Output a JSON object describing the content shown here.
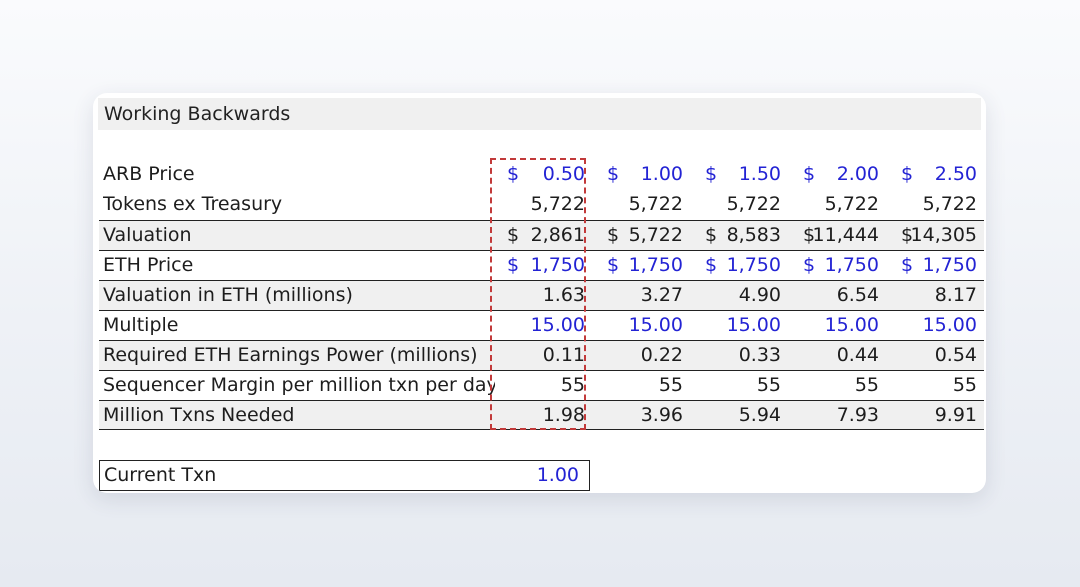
{
  "sheet": {
    "title": "Working Backwards",
    "rows": [
      {
        "label": "ARB Price",
        "values": [
          "$|0.50",
          "$|1.00",
          "$|1.50",
          "$|2.00",
          "$|2.50"
        ],
        "style": "blue",
        "shaded": false
      },
      {
        "label": "Tokens ex Treasury",
        "values": [
          "|5,722",
          "|5,722",
          "|5,722",
          "|5,722",
          "|5,722"
        ],
        "style": "black",
        "shaded": false
      },
      {
        "label": "Valuation",
        "values": [
          "$|2,861",
          "$|5,722",
          "$|8,583",
          "$|11,444",
          "$|14,305"
        ],
        "style": "black",
        "shaded": true
      },
      {
        "label": "ETH Price",
        "values": [
          "$|1,750",
          "$|1,750",
          "$|1,750",
          "$|1,750",
          "$|1,750"
        ],
        "style": "blue",
        "shaded": false
      },
      {
        "label": "Valuation in ETH (millions)",
        "values": [
          "|1.63",
          "|3.27",
          "|4.90",
          "|6.54",
          "|8.17"
        ],
        "style": "black",
        "shaded": true
      },
      {
        "label": "Multiple",
        "values": [
          "|15.00",
          "|15.00",
          "|15.00",
          "|15.00",
          "|15.00"
        ],
        "style": "blue",
        "shaded": false
      },
      {
        "label": "Required ETH Earnings Power (millions)",
        "values": [
          "|0.11",
          "|0.22",
          "|0.33",
          "|0.44",
          "|0.54"
        ],
        "style": "black",
        "shaded": true
      },
      {
        "label": "Sequencer Margin per million txn per day",
        "values": [
          "|55",
          "|55",
          "|55",
          "|55",
          "|55"
        ],
        "style": "black",
        "shaded": false
      },
      {
        "label": "Million Txns Needed",
        "values": [
          "|1.98",
          "|3.96",
          "|5.94",
          "|7.93",
          "|9.91"
        ],
        "style": "black",
        "shaded": true
      }
    ],
    "current_txn": {
      "label": "Current Txn",
      "value": "1.00"
    },
    "colors": {
      "input_blue": "#2323d4",
      "highlight_dash": "#c23a3a",
      "shade": "#f0f0f0"
    }
  }
}
